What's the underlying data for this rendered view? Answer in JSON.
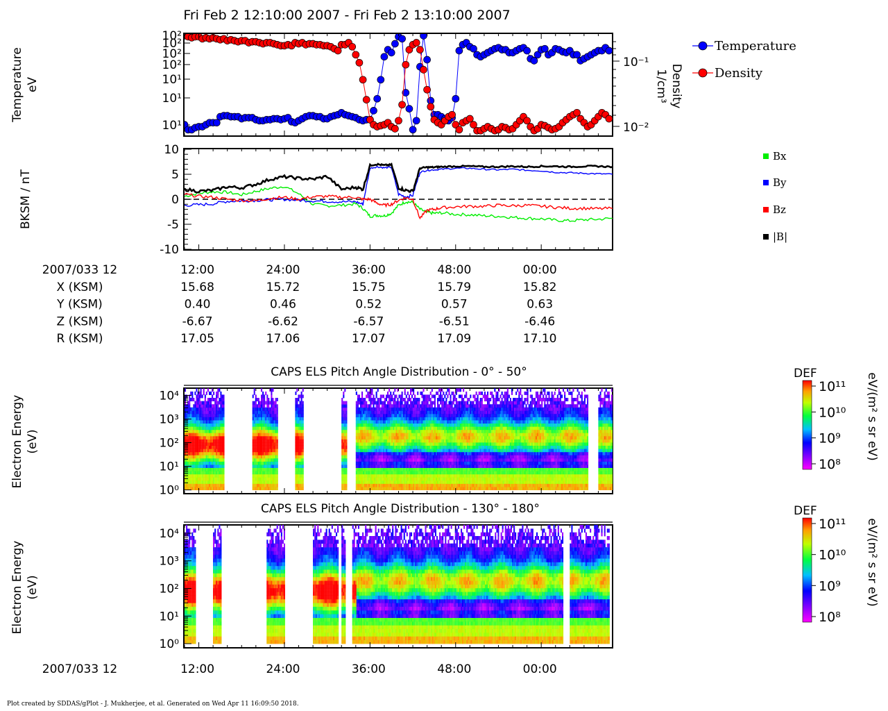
{
  "title": "Fri Feb 2 12:10:00 2007 - Fri Feb 2 13:10:00 2007",
  "footer": "Plot created by SDDAS/gPlot - J. Mukherjee, et al.  Generated on Wed Apr 11 16:09:50 2018.",
  "colors": {
    "temperature": "#0000ff",
    "density": "#ff0000",
    "bx": "#00ee00",
    "by": "#0000ff",
    "bz": "#ff0000",
    "bmag": "#000000"
  },
  "chart_data": [
    {
      "type": "line",
      "ylabel_left": [
        "Temperature",
        "eV"
      ],
      "ylabel_right": [
        "Density",
        "1/cm³"
      ],
      "left_ticks": [
        "10¹",
        "10¹",
        "10¹",
        "10²",
        "10²",
        "10²",
        "10²"
      ],
      "right_ticks": [
        "10⁻¹",
        "10⁻²"
      ],
      "scale": "log",
      "legend": [
        "Temperature",
        "Density"
      ],
      "legend_position": "right",
      "x_minutes": [
        10.0,
        10.5,
        11.0,
        11.5,
        12.0,
        12.5,
        13.0,
        13.5,
        14.0,
        14.5,
        15.0,
        15.5,
        16.0,
        16.5,
        17.0,
        17.5,
        18.0,
        18.5,
        19.0,
        19.5,
        20.0,
        20.5,
        21.0,
        21.5,
        22.0,
        22.5,
        23.0,
        23.5,
        24.0,
        24.5,
        25.0,
        25.5,
        26.0,
        26.5,
        27.0,
        27.5,
        28.0,
        28.5,
        29.0,
        29.5,
        30.0,
        30.5,
        31.0,
        31.5,
        32.0,
        32.5,
        33.0,
        33.5,
        34.0,
        34.5,
        35.0,
        35.5,
        36.0,
        36.5,
        37.0,
        37.5,
        38.0,
        38.5,
        39.0,
        39.5,
        40.0,
        40.5,
        41.0,
        41.5,
        42.0,
        42.5,
        43.0,
        43.5,
        44.0,
        44.5,
        45.0,
        45.5,
        46.0,
        46.5,
        47.0,
        47.5,
        48.0,
        48.5,
        49.0,
        49.5,
        50.0,
        50.5,
        51.0,
        51.5,
        52.0,
        52.5,
        53.0,
        53.5,
        54.0,
        54.5,
        55.0,
        55.5,
        56.0,
        56.5,
        57.0,
        57.5,
        58.0,
        58.5,
        59.0,
        59.5,
        60.0,
        60.5,
        61.0,
        61.5,
        62.0,
        62.5,
        63.0,
        63.5,
        64.0,
        64.5,
        65.0,
        65.5,
        66.0,
        66.5,
        67.0,
        67.5,
        68.0,
        68.5,
        69.0,
        69.5
      ],
      "series": [
        {
          "name": "Temperature",
          "norm": [
            0.1,
            0.05,
            0.05,
            0.07,
            0.08,
            0.08,
            0.1,
            0.12,
            0.12,
            0.12,
            0.18,
            0.19,
            0.19,
            0.18,
            0.18,
            0.18,
            0.16,
            0.17,
            0.17,
            0.17,
            0.15,
            0.14,
            0.14,
            0.15,
            0.15,
            0.16,
            0.16,
            0.15,
            0.16,
            0.17,
            0.13,
            0.12,
            0.14,
            0.16,
            0.18,
            0.19,
            0.19,
            0.18,
            0.18,
            0.16,
            0.16,
            0.18,
            0.19,
            0.2,
            0.22,
            0.2,
            0.19,
            0.18,
            0.17,
            0.15,
            0.14,
            0.15,
            0.15,
            0.24,
            0.36,
            0.55,
            0.78,
            0.85,
            0.82,
            0.91,
            0.98,
            0.96,
            0.42,
            0.26,
            0.05,
            0.14,
            0.68,
            0.99,
            0.75,
            0.34,
            0.2,
            0.2,
            0.18,
            0.16,
            0.14,
            0.17,
            0.36,
            0.84,
            0.9,
            0.92,
            0.88,
            0.86,
            0.8,
            0.78,
            0.8,
            0.82,
            0.84,
            0.86,
            0.87,
            0.85,
            0.85,
            0.82,
            0.82,
            0.84,
            0.86,
            0.87,
            0.84,
            0.76,
            0.74,
            0.8,
            0.85,
            0.86,
            0.8,
            0.82,
            0.86,
            0.85,
            0.83,
            0.82,
            0.84,
            0.8,
            0.8,
            0.74,
            0.76,
            0.78,
            0.8,
            0.82,
            0.84,
            0.84,
            0.87,
            0.84
          ]
        },
        {
          "name": "Density",
          "norm": [
            0.99,
            0.98,
            0.97,
            0.98,
            0.98,
            0.96,
            0.97,
            0.96,
            0.97,
            0.96,
            0.95,
            0.96,
            0.94,
            0.95,
            0.94,
            0.93,
            0.94,
            0.94,
            0.92,
            0.93,
            0.93,
            0.92,
            0.91,
            0.92,
            0.92,
            0.91,
            0.9,
            0.89,
            0.89,
            0.9,
            0.89,
            0.92,
            0.91,
            0.92,
            0.9,
            0.91,
            0.91,
            0.9,
            0.9,
            0.89,
            0.89,
            0.88,
            0.86,
            0.84,
            0.9,
            0.9,
            0.92,
            0.88,
            0.8,
            0.72,
            0.55,
            0.35,
            0.15,
            0.1,
            0.08,
            0.09,
            0.1,
            0.12,
            0.08,
            0.06,
            0.14,
            0.3,
            0.7,
            0.85,
            0.9,
            0.92,
            0.85,
            0.65,
            0.45,
            0.28,
            0.15,
            0.12,
            0.1,
            0.14,
            0.18,
            0.2,
            0.1,
            0.05,
            0.12,
            0.14,
            0.16,
            0.1,
            0.04,
            0.04,
            0.06,
            0.08,
            0.06,
            0.04,
            0.05,
            0.08,
            0.07,
            0.05,
            0.06,
            0.1,
            0.14,
            0.18,
            0.14,
            0.08,
            0.04,
            0.06,
            0.1,
            0.09,
            0.07,
            0.05,
            0.06,
            0.08,
            0.12,
            0.15,
            0.18,
            0.2,
            0.22,
            0.16,
            0.12,
            0.08,
            0.1,
            0.14,
            0.18,
            0.22,
            0.2,
            0.16
          ]
        }
      ]
    },
    {
      "type": "line",
      "ylabel": "BKSM / nT",
      "ylim": [
        -10,
        10
      ],
      "yticks": [
        "10",
        "5",
        "0",
        "-5",
        "-10"
      ],
      "legend": [
        "Bx",
        "By",
        "Bz",
        "|B|"
      ],
      "legend_position": "right",
      "x": [
        10,
        12,
        14,
        16,
        18,
        20,
        22,
        24,
        26,
        28,
        30,
        32,
        34,
        35,
        36,
        37,
        38,
        39,
        40,
        41,
        42,
        43,
        44,
        45,
        46,
        48,
        50,
        52,
        54,
        56,
        58,
        60,
        62,
        64,
        66,
        68,
        70
      ],
      "series": [
        {
          "name": "Bx",
          "values": [
            0.6,
            1.2,
            1.5,
            1.4,
            0.9,
            1.6,
            2.2,
            2.6,
            1.1,
            -1.0,
            -1.3,
            -1.2,
            -0.9,
            -1.8,
            -3.4,
            -3.2,
            -3.3,
            -2.8,
            -1.2,
            -0.5,
            -0.6,
            -2.0,
            -2.6,
            -2.8,
            -2.7,
            -3.0,
            -3.1,
            -3.3,
            -3.4,
            -3.6,
            -3.8,
            -3.9,
            -4.2,
            -4.3,
            -4.1,
            -4.0,
            -3.8
          ]
        },
        {
          "name": "By",
          "values": [
            -1.2,
            -1.1,
            -0.9,
            -0.4,
            -0.3,
            -0.2,
            -0.1,
            0.0,
            -0.2,
            -0.3,
            -0.4,
            -0.5,
            -0.5,
            -1.0,
            6.2,
            6.5,
            6.3,
            6.4,
            1.0,
            0.5,
            0.8,
            5.4,
            5.8,
            5.9,
            6.0,
            6.2,
            6.2,
            6.0,
            5.9,
            6.0,
            5.8,
            5.7,
            5.4,
            5.3,
            5.2,
            5.1,
            5.0
          ]
        },
        {
          "name": "Bz",
          "values": [
            1.0,
            0.6,
            0.4,
            0.0,
            -0.2,
            -0.3,
            0.2,
            0.4,
            0.0,
            0.5,
            0.6,
            0.4,
            0.4,
            0.0,
            0.0,
            -0.8,
            -1.2,
            -1.0,
            -0.2,
            0.3,
            0.0,
            -3.8,
            -2.2,
            -2.0,
            -1.7,
            -1.5,
            -1.4,
            -1.4,
            -1.2,
            -1.3,
            -1.2,
            -1.4,
            -1.6,
            -1.8,
            -1.8,
            -1.9,
            -1.8
          ]
        },
        {
          "name": "|B|",
          "values": [
            2.0,
            1.6,
            1.8,
            2.5,
            2.3,
            3.0,
            4.0,
            4.5,
            4.2,
            4.0,
            4.6,
            2.0,
            2.4,
            2.0,
            6.8,
            7.0,
            6.8,
            6.9,
            2.3,
            1.8,
            1.6,
            6.2,
            6.4,
            6.4,
            6.5,
            6.6,
            6.6,
            6.5,
            6.5,
            6.6,
            6.5,
            6.6,
            6.6,
            6.5,
            6.6,
            6.6,
            6.5
          ]
        }
      ]
    },
    {
      "type": "heatmap",
      "title": "CAPS ELS Pitch Angle Distribution - 0° - 50°",
      "ylabel": [
        "Electron Energy",
        "(eV)"
      ],
      "yticks": [
        "10⁴",
        "10³",
        "10²",
        "10¹",
        "10⁰"
      ],
      "colorbar": {
        "label": "DEF",
        "unit": "eV/(m² s sr eV)",
        "ticks": [
          "10¹¹",
          "10¹⁰",
          "10⁹",
          "10⁸"
        ]
      },
      "data_intervals_minutes": [
        [
          10,
          15.5
        ],
        [
          19.5,
          23
        ],
        [
          25.5,
          26.5
        ],
        [
          32,
          32.7
        ],
        [
          34,
          48
        ],
        [
          48,
          66.5
        ],
        [
          68,
          70
        ]
      ]
    },
    {
      "type": "heatmap",
      "title": "CAPS ELS Pitch Angle Distribution - 130° - 180°",
      "ylabel": [
        "Electron Energy",
        "(eV)"
      ],
      "yticks": [
        "10⁴",
        "10³",
        "10²",
        "10¹",
        "10⁰"
      ],
      "colorbar": {
        "label": "DEF",
        "unit": "eV/(m² s sr eV)",
        "ticks": [
          "10¹¹",
          "10¹⁰",
          "10⁹",
          "10⁸"
        ]
      },
      "data_intervals_minutes": [
        [
          10,
          11.5
        ],
        [
          14,
          15
        ],
        [
          21.5,
          24
        ],
        [
          28,
          31.5
        ],
        [
          32,
          32.6
        ],
        [
          33.5,
          63
        ],
        [
          64,
          69.5
        ]
      ]
    }
  ],
  "time_axis": {
    "xlim_minutes": [
      10,
      70
    ],
    "ticks_minutes": [
      12,
      24,
      36,
      48,
      60
    ],
    "tick_labels": [
      "12:00",
      "24:00",
      "36:00",
      "48:00",
      "00:00"
    ],
    "label": "2007/033 12"
  },
  "ephemeris": {
    "rows": [
      {
        "label": "X (KSM)",
        "values": [
          "15.68",
          "15.72",
          "15.75",
          "15.79",
          "15.82"
        ]
      },
      {
        "label": "Y (KSM)",
        "values": [
          "0.40",
          "0.46",
          "0.52",
          "0.57",
          "0.63"
        ]
      },
      {
        "label": "Z (KSM)",
        "values": [
          "-6.67",
          "-6.62",
          "-6.57",
          "-6.51",
          "-6.46"
        ]
      },
      {
        "label": "R (KSM)",
        "values": [
          "17.05",
          "17.06",
          "17.07",
          "17.09",
          "17.10"
        ]
      }
    ]
  }
}
